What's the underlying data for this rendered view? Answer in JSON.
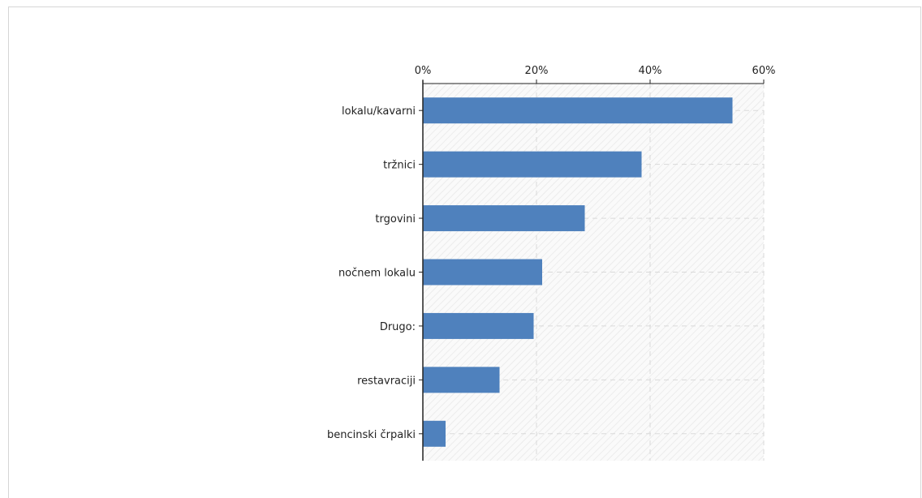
{
  "chart_data": {
    "type": "bar",
    "orientation": "horizontal",
    "title": "",
    "xlabel": "",
    "ylabel": "",
    "categories": [
      "lokalu/kavarni",
      "tržnici",
      "trgovini",
      "nočnem lokalu",
      "Drugo:",
      "restavraciji",
      "bencinski črpalki"
    ],
    "values": [
      54.5,
      38.5,
      28.5,
      21,
      19.5,
      13.5,
      4
    ],
    "xlim": [
      0,
      60
    ],
    "x_ticks": [
      0,
      20,
      40,
      60
    ],
    "x_tick_labels": [
      "0%",
      "20%",
      "40%",
      "60%"
    ],
    "x_axis_position": "top",
    "grid": true,
    "legend": "none",
    "colors": {
      "bar": "#4f81bd",
      "axis": "#222222",
      "grid": "#d9d9d9",
      "plot_background": "#f7f7f7"
    }
  }
}
